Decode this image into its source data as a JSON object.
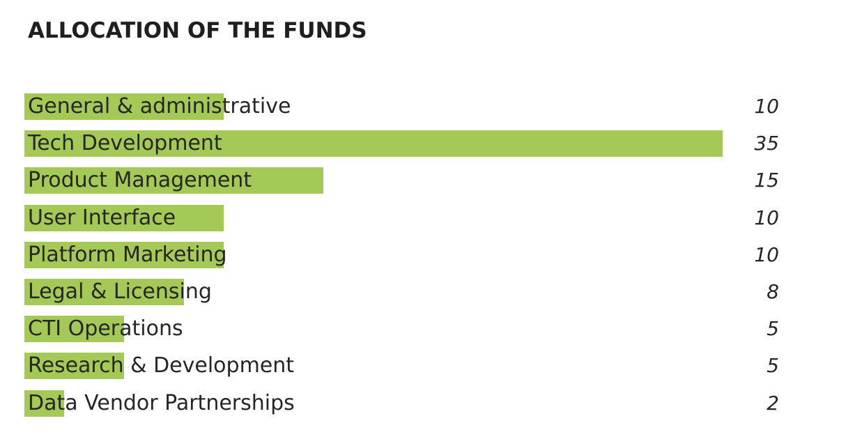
{
  "title": "ALLOCATION OF THE FUNDS",
  "colors": {
    "bar": "#a4c957",
    "text": "#262626"
  },
  "chart_data": {
    "type": "bar",
    "orientation": "horizontal",
    "title": "ALLOCATION OF THE FUNDS",
    "categories": [
      "General & administrative",
      "Tech Development",
      "Product Management",
      "User Interface",
      "Platform Marketing",
      "Legal & Licensing",
      "CTI Operations",
      "Research & Development",
      "Data Vendor Partnerships"
    ],
    "values": [
      10,
      35,
      15,
      10,
      10,
      8,
      5,
      5,
      2
    ],
    "value_labels": [
      "10",
      "35",
      "15",
      "10",
      "10",
      "8",
      "5",
      "5",
      "2"
    ],
    "xlim": [
      0,
      35
    ],
    "grid": false,
    "legend": "none"
  }
}
